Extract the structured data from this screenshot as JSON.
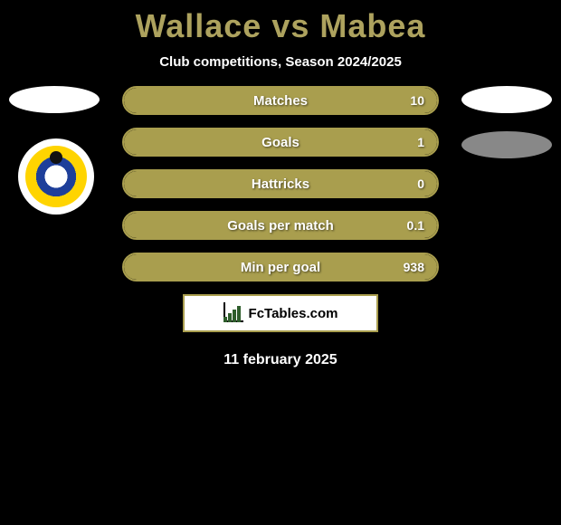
{
  "title": {
    "left": "Wallace",
    "vs": "vs",
    "right": "Mabea",
    "color": "#ada25e"
  },
  "subtitle": "Club competitions, Season 2024/2025",
  "accent": {
    "border": "#a99e4e",
    "fill": "#a99e4e"
  },
  "rows": [
    {
      "label": "Matches",
      "value": "10",
      "fill_percent": 100
    },
    {
      "label": "Goals",
      "value": "1",
      "fill_percent": 100
    },
    {
      "label": "Hattricks",
      "value": "0",
      "fill_percent": 100
    },
    {
      "label": "Goals per match",
      "value": "0.1",
      "fill_percent": 100
    },
    {
      "label": "Min per goal",
      "value": "938",
      "fill_percent": 100
    }
  ],
  "brand": "FcTables.com",
  "date": "11 february 2025"
}
